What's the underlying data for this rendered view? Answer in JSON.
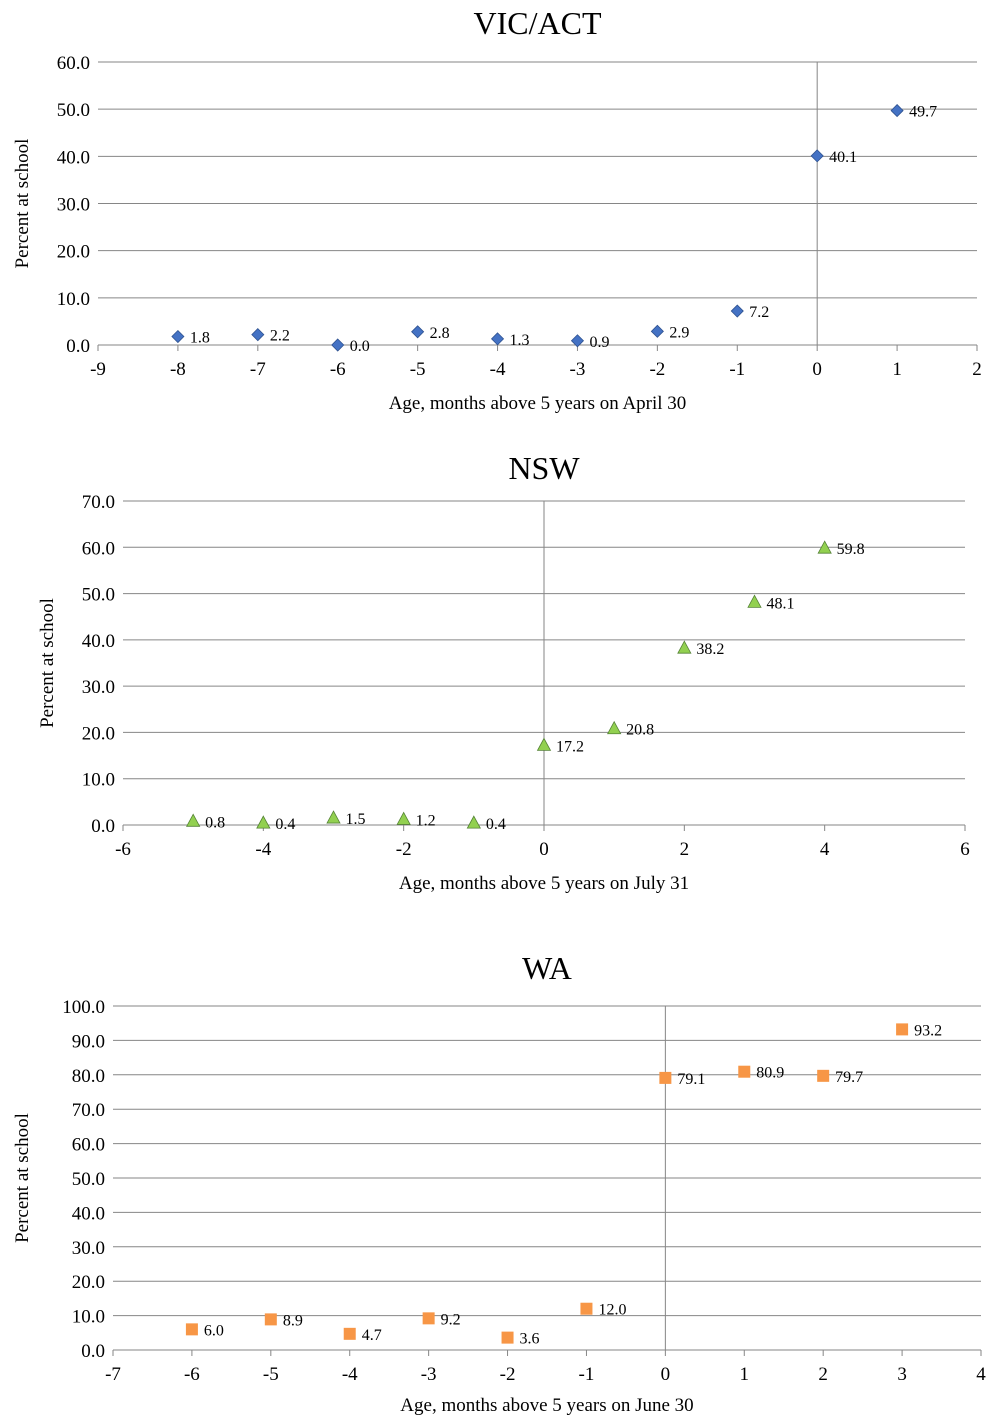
{
  "chart_data": [
    {
      "type": "scatter",
      "title": "VIC/ACT",
      "xlabel": "Age, months above 5 years on April 30",
      "ylabel": "Percent at school",
      "xlim": [
        -9,
        2
      ],
      "ylim": [
        0,
        60
      ],
      "x_ticks": [
        "-9",
        "-8",
        "-7",
        "-6",
        "-5",
        "-4",
        "-3",
        "-2",
        "-1",
        "0",
        "1",
        "2"
      ],
      "y_ticks": [
        "0.0",
        "10.0",
        "20.0",
        "30.0",
        "40.0",
        "50.0",
        "60.0"
      ],
      "grid": true,
      "legend": "none",
      "marker": "diamond",
      "color": "#4472C4",
      "points": [
        {
          "x": -8,
          "y": 1.8,
          "label": "1.8"
        },
        {
          "x": -7,
          "y": 2.2,
          "label": "2.2"
        },
        {
          "x": -6,
          "y": 0.0,
          "label": "0.0"
        },
        {
          "x": -5,
          "y": 2.8,
          "label": "2.8"
        },
        {
          "x": -4,
          "y": 1.3,
          "label": "1.3"
        },
        {
          "x": -3,
          "y": 0.9,
          "label": "0.9"
        },
        {
          "x": -2,
          "y": 2.9,
          "label": "2.9"
        },
        {
          "x": -1,
          "y": 7.2,
          "label": "7.2"
        },
        {
          "x": 0,
          "y": 40.1,
          "label": "40.1"
        },
        {
          "x": 1,
          "y": 49.7,
          "label": "49.7"
        }
      ]
    },
    {
      "type": "scatter",
      "title": "NSW",
      "xlabel": "Age, months above 5 years on July 31",
      "ylabel": "Percent at school",
      "xlim": [
        -6,
        6
      ],
      "ylim": [
        0,
        70
      ],
      "x_ticks": [
        "-6",
        "-4",
        "-2",
        "0",
        "2",
        "4",
        "6"
      ],
      "y_ticks": [
        "0.0",
        "10.0",
        "20.0",
        "30.0",
        "40.0",
        "50.0",
        "60.0",
        "70.0"
      ],
      "grid": true,
      "legend": "none",
      "marker": "triangle",
      "color": "#92D050",
      "points": [
        {
          "x": -5,
          "y": 0.8,
          "label": "0.8"
        },
        {
          "x": -4,
          "y": 0.4,
          "label": "0.4"
        },
        {
          "x": -3,
          "y": 1.5,
          "label": "1.5"
        },
        {
          "x": -2,
          "y": 1.2,
          "label": "1.2"
        },
        {
          "x": -1,
          "y": 0.4,
          "label": "0.4"
        },
        {
          "x": 0,
          "y": 17.2,
          "label": "17.2"
        },
        {
          "x": 1,
          "y": 20.8,
          "label": "20.8"
        },
        {
          "x": 2,
          "y": 38.2,
          "label": "38.2"
        },
        {
          "x": 3,
          "y": 48.1,
          "label": "48.1"
        },
        {
          "x": 4,
          "y": 59.8,
          "label": "59.8"
        }
      ]
    },
    {
      "type": "scatter",
      "title": "WA",
      "xlabel": "Age, months above 5 years on June 30",
      "ylabel": "Percent at school",
      "xlim": [
        -7,
        4
      ],
      "ylim": [
        0,
        100
      ],
      "x_ticks": [
        "-7",
        "-6",
        "-5",
        "-4",
        "-3",
        "-2",
        "-1",
        "0",
        "1",
        "2",
        "3",
        "4"
      ],
      "y_ticks": [
        "0.0",
        "10.0",
        "20.0",
        "30.0",
        "40.0",
        "50.0",
        "60.0",
        "70.0",
        "80.0",
        "90.0",
        "100.0"
      ],
      "grid": true,
      "legend": "none",
      "marker": "square",
      "color": "#F79646",
      "points": [
        {
          "x": -6,
          "y": 6.0,
          "label": "6.0"
        },
        {
          "x": -5,
          "y": 8.9,
          "label": "8.9"
        },
        {
          "x": -4,
          "y": 4.7,
          "label": "4.7"
        },
        {
          "x": -3,
          "y": 9.2,
          "label": "9.2"
        },
        {
          "x": -2,
          "y": 3.6,
          "label": "3.6"
        },
        {
          "x": -1,
          "y": 12.0,
          "label": "12.0"
        },
        {
          "x": 0,
          "y": 79.1,
          "label": "79.1"
        },
        {
          "x": 1,
          "y": 80.9,
          "label": "80.9"
        },
        {
          "x": 2,
          "y": 79.7,
          "label": "79.7"
        },
        {
          "x": 3,
          "y": 93.2,
          "label": "93.2"
        }
      ]
    }
  ]
}
